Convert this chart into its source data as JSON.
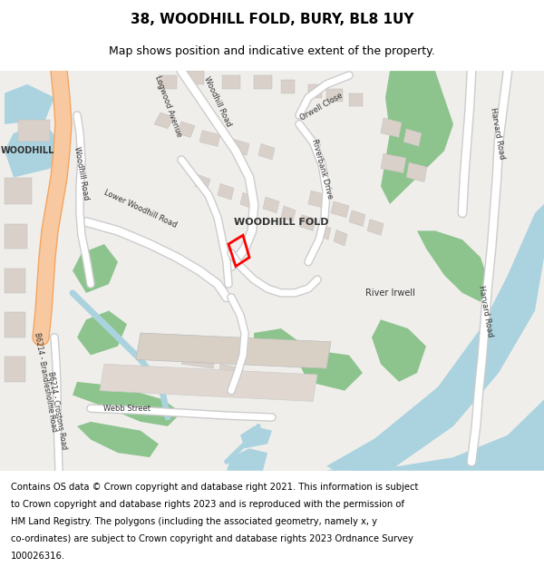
{
  "title": "38, WOODHILL FOLD, BURY, BL8 1UY",
  "subtitle": "Map shows position and indicative extent of the property.",
  "footer_lines": [
    "Contains OS data © Crown copyright and database right 2021. This information is subject",
    "to Crown copyright and database rights 2023 and is reproduced with the permission of",
    "HM Land Registry. The polygons (including the associated geometry, namely x, y",
    "co-ordinates) are subject to Crown copyright and database rights 2023 Ordnance Survey",
    "100026316."
  ],
  "bg_color": "#f0eeeb",
  "road_color": "#ffffff",
  "major_road_color": "#f4a460",
  "water_color": "#aad3df",
  "green_color": "#8dc48e",
  "building_color": "#d9d0c9",
  "plot_color": "#ff0000",
  "title_fontsize": 11,
  "subtitle_fontsize": 9,
  "footer_fontsize": 7.2,
  "map_bg": "#f0eeeb",
  "figsize": [
    6.0,
    6.25
  ],
  "dpi": 100
}
